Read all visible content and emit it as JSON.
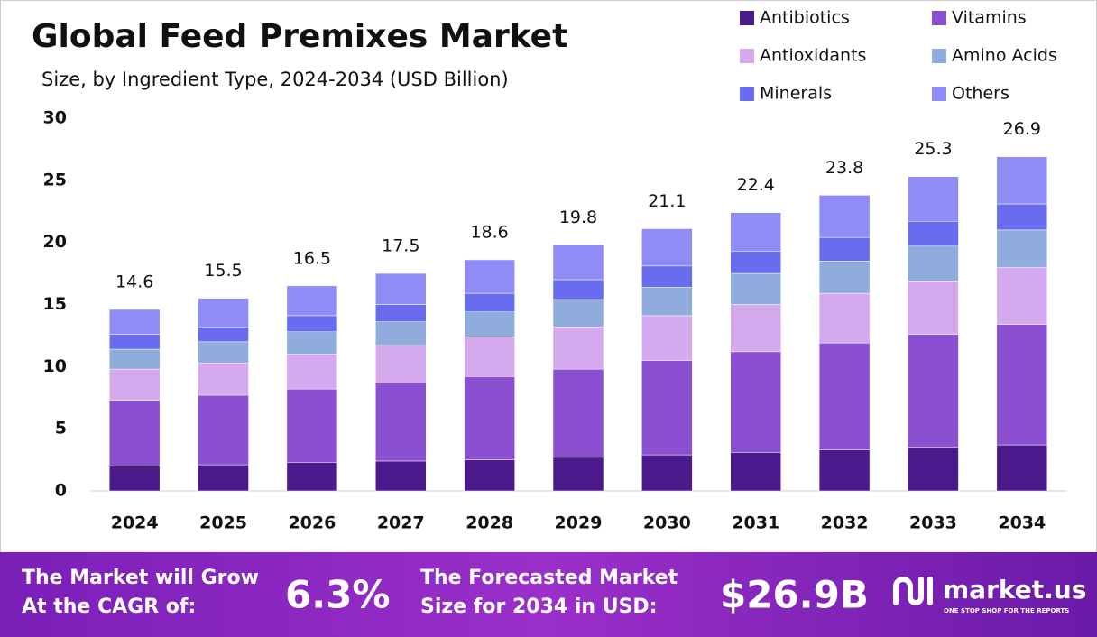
{
  "chart_data": {
    "type": "stacked-bar",
    "title": "Global Feed Premixes Market",
    "subtitle": "Size, by  Ingredient Type, 2024-2034 (USD Billion)",
    "categories": [
      "2024",
      "2025",
      "2026",
      "2027",
      "2028",
      "2029",
      "2030",
      "2031",
      "2032",
      "2033",
      "2034"
    ],
    "series": [
      {
        "name": "Antibiotics",
        "color": "#4b1b8e",
        "values": [
          2.0,
          2.1,
          2.3,
          2.4,
          2.5,
          2.7,
          2.9,
          3.1,
          3.3,
          3.5,
          3.7
        ]
      },
      {
        "name": "Vitamins",
        "color": "#8b4fd1",
        "values": [
          5.3,
          5.6,
          5.9,
          6.3,
          6.7,
          7.1,
          7.6,
          8.1,
          8.6,
          9.1,
          9.7
        ]
      },
      {
        "name": "Antioxidants",
        "color": "#d5a9ee",
        "values": [
          2.5,
          2.6,
          2.8,
          3.0,
          3.2,
          3.4,
          3.6,
          3.8,
          4.0,
          4.3,
          4.6
        ]
      },
      {
        "name": "Amino Acids",
        "color": "#8facdc",
        "values": [
          1.6,
          1.7,
          1.8,
          1.9,
          2.0,
          2.2,
          2.3,
          2.5,
          2.6,
          2.8,
          3.0
        ]
      },
      {
        "name": "Minerals",
        "color": "#6a6cf0",
        "values": [
          1.2,
          1.2,
          1.3,
          1.4,
          1.5,
          1.6,
          1.7,
          1.8,
          1.9,
          2.0,
          2.1
        ]
      },
      {
        "name": "Others",
        "color": "#8f8cf6",
        "values": [
          2.0,
          2.3,
          2.4,
          2.5,
          2.7,
          2.8,
          3.0,
          3.1,
          3.4,
          3.6,
          3.8
        ]
      }
    ],
    "totals": [
      14.6,
      15.5,
      16.5,
      17.5,
      18.6,
      19.8,
      21.1,
      22.4,
      23.8,
      25.3,
      26.9
    ],
    "ylim": [
      0,
      30
    ],
    "yticks": [
      0,
      5,
      10,
      15,
      20,
      25,
      30
    ],
    "grid": false,
    "legend": "top-right"
  },
  "footer": {
    "cagr_text_1": "The Market will Grow",
    "cagr_text_2": "At the CAGR of:",
    "cagr": "6.3%",
    "forecast_text_1": "The Forecasted Market",
    "forecast_text_2": "Size for 2034 in USD:",
    "forecast": "$26.9B",
    "logo": "market.us",
    "tagline": "ONE STOP SHOP FOR THE REPORTS"
  }
}
